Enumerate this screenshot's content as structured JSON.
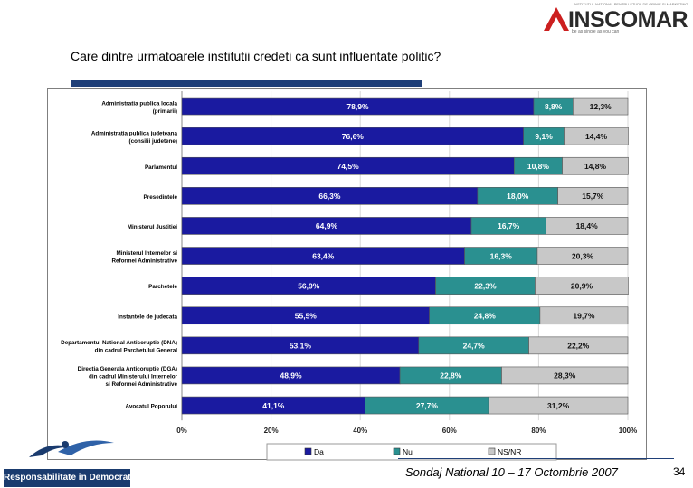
{
  "page": {
    "title": "Care dintre urmatoarele institutii credeti ca sunt influentate politic?",
    "logo_text": "INSCOMAR",
    "logo_top": "INSTITUTUL NATIONAL PENTRU STUDII DE OPINIE SI MARKETING",
    "logo_sub": "be as single as you can",
    "banner": "Responsabilitate în Democratie",
    "footer": "Sondaj National 10 – 17 Octombrie 2007",
    "page_number": "34"
  },
  "chart_data": {
    "type": "bar",
    "orientation": "horizontal",
    "stacked": true,
    "categories": [
      [
        "Administratia publica locala",
        "(primarii)"
      ],
      [
        "Administratia publica judeteana",
        "(consilii judetene)"
      ],
      [
        "Parlamentul"
      ],
      [
        "Presedintele"
      ],
      [
        "Ministerul Justitiei"
      ],
      [
        "Ministerul Internelor si",
        "Reformei Administrative"
      ],
      [
        "Parchetele"
      ],
      [
        "Instantele de judecata"
      ],
      [
        "Departamentul National Anticoruptie (DNA)",
        "din cadrul Parchetului General"
      ],
      [
        "Directia Generala Anticoruptie (DGA)",
        "din cadrul Ministerului Internelor",
        "si Reformei Administrative"
      ],
      [
        "Avocatul Poporului"
      ]
    ],
    "series": [
      {
        "name": "Da",
        "color": "#1a1aa0",
        "values": [
          78.9,
          76.6,
          74.5,
          66.3,
          64.9,
          63.4,
          56.9,
          55.5,
          53.1,
          48.9,
          41.1
        ],
        "labels": [
          "78,9%",
          "76,6%",
          "74,5%",
          "66,3%",
          "64,9%",
          "63,4%",
          "56,9%",
          "55,5%",
          "53,1%",
          "48,9%",
          "41,1%"
        ]
      },
      {
        "name": "Nu",
        "color": "#2a9090",
        "values": [
          8.8,
          9.1,
          10.8,
          18.0,
          16.7,
          16.3,
          22.3,
          24.8,
          24.7,
          22.8,
          27.7
        ],
        "labels": [
          "8,8%",
          "9,1%",
          "10,8%",
          "18,0%",
          "16,7%",
          "16,3%",
          "22,3%",
          "24,8%",
          "24,7%",
          "22,8%",
          "27,7%"
        ]
      },
      {
        "name": "NS/NR",
        "color": "#c8c8c8",
        "values": [
          12.3,
          14.4,
          14.8,
          15.7,
          18.4,
          20.3,
          20.9,
          19.7,
          22.2,
          28.3,
          31.2
        ],
        "labels": [
          "12,3%",
          "14,4%",
          "14,8%",
          "15,7%",
          "18,4%",
          "20,3%",
          "20,9%",
          "19,7%",
          "22,2%",
          "28,3%",
          "31,2%"
        ]
      }
    ],
    "xlim": [
      0,
      100
    ],
    "x_ticks": [
      "0%",
      "20%",
      "40%",
      "60%",
      "80%",
      "100%"
    ],
    "legend_position": "bottom"
  }
}
